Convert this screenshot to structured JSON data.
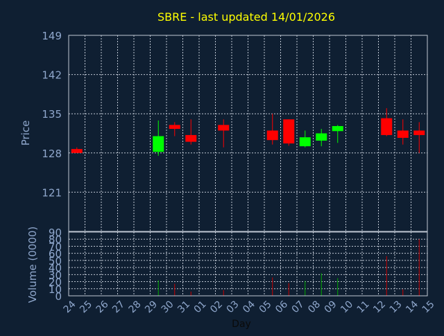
{
  "chart_data": {
    "type": "candlestick",
    "title": "SBRE - last updated 14/01/2026",
    "xlabel": "Day",
    "ylabel": "Price",
    "ylim": [
      114,
      149
    ],
    "y_ticks": [
      149,
      142,
      135,
      128,
      121
    ],
    "volume_ylabel": "Volume (0000)",
    "volume_ylim": [
      0,
      90
    ],
    "volume_ticks": [
      90,
      80,
      70,
      60,
      50,
      40,
      30,
      20,
      10,
      0
    ],
    "x_ticks": [
      "24",
      "25",
      "26",
      "27",
      "28",
      "29",
      "30",
      "31",
      "01",
      "02",
      "03",
      "04",
      "05",
      "06",
      "07",
      "08",
      "09",
      "10",
      "11",
      "12",
      "13",
      "14",
      "15"
    ],
    "grid": true,
    "candles": [
      {
        "x": "24",
        "open": 128.7,
        "high": 129.0,
        "low": 128.0,
        "close": 128.0,
        "volume": 0
      },
      {
        "x": "29",
        "open": 128.2,
        "high": 133.8,
        "low": 127.5,
        "close": 131.0,
        "volume": 22
      },
      {
        "x": "30",
        "open": 133.0,
        "high": 133.5,
        "low": 131.0,
        "close": 132.3,
        "volume": 17
      },
      {
        "x": "31",
        "open": 131.2,
        "high": 134.0,
        "low": 129.5,
        "close": 130.0,
        "volume": 6
      },
      {
        "x": "02",
        "open": 133.0,
        "high": 134.0,
        "low": 129.0,
        "close": 132.0,
        "volume": 8
      },
      {
        "x": "05",
        "open": 132.0,
        "high": 135.0,
        "low": 129.5,
        "close": 130.3,
        "volume": 26
      },
      {
        "x": "06",
        "open": 134.0,
        "high": 134.0,
        "low": 129.3,
        "close": 129.7,
        "volume": 18
      },
      {
        "x": "07",
        "open": 129.2,
        "high": 132.0,
        "low": 129.0,
        "close": 130.8,
        "volume": 21
      },
      {
        "x": "08",
        "open": 130.2,
        "high": 132.3,
        "low": 129.2,
        "close": 131.5,
        "volume": 32
      },
      {
        "x": "09",
        "open": 131.9,
        "high": 133.0,
        "low": 129.8,
        "close": 132.8,
        "volume": 25
      },
      {
        "x": "12",
        "open": 134.2,
        "high": 136.0,
        "low": 131.0,
        "close": 131.2,
        "volume": 56
      },
      {
        "x": "13",
        "open": 132.0,
        "high": 134.0,
        "low": 129.5,
        "close": 130.7,
        "volume": 9
      },
      {
        "x": "14",
        "open": 132.0,
        "high": 133.5,
        "low": 128.0,
        "close": 131.2,
        "volume": 80
      }
    ]
  },
  "colors": {
    "background": "#0f1f32",
    "title": "#ffff00",
    "axis_text": "#8fa7cc",
    "grid": "#c0c8d4",
    "up": "#00ff00",
    "down": "#ff0000",
    "up_volume": "#00a800",
    "down_volume": "#c80000"
  }
}
